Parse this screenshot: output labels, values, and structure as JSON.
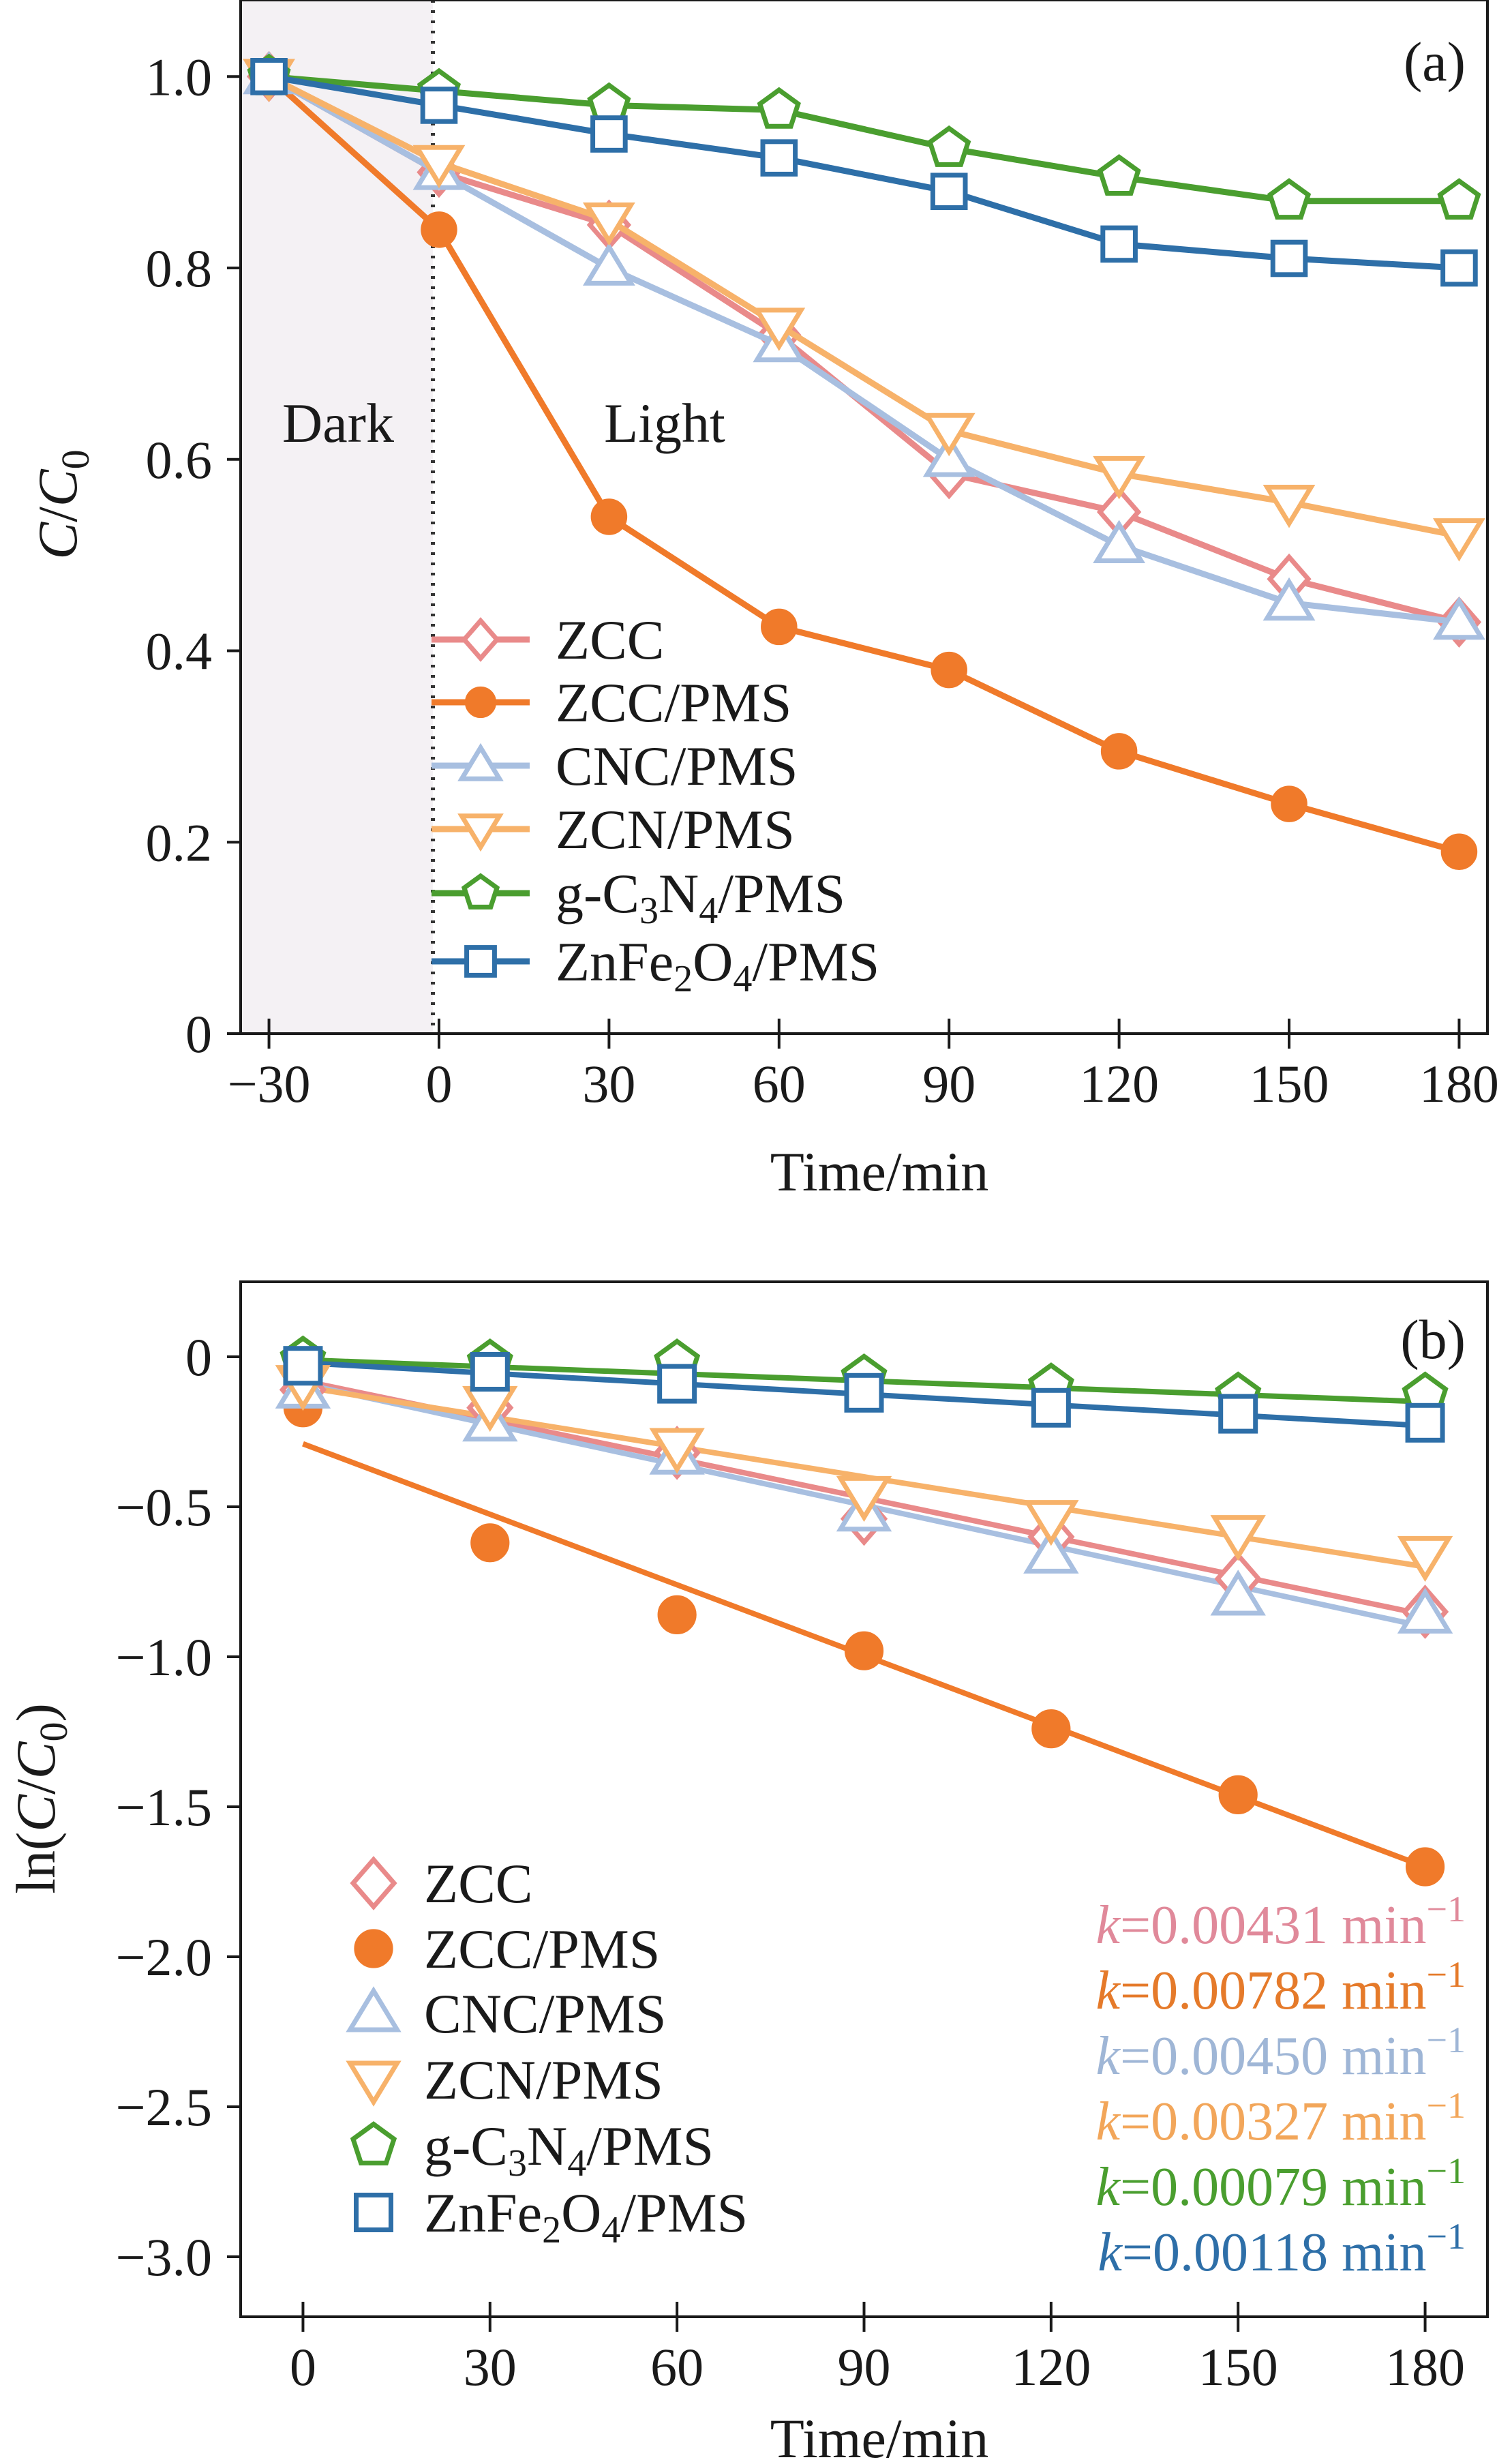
{
  "chart_data": [
    {
      "type": "line",
      "panel_label": "(a)",
      "xlabel": "Time/min",
      "ylabel": "C/C0",
      "ylabel_parts": [
        "C",
        "/",
        "C",
        "0"
      ],
      "xlim": [
        -35,
        185
      ],
      "ylim": [
        0,
        1.08
      ],
      "xticks": [
        -30,
        0,
        30,
        60,
        90,
        120,
        150,
        180
      ],
      "xtick_labels": [
        "−30",
        "0",
        "30",
        "60",
        "90",
        "120",
        "150",
        "180"
      ],
      "yticks": [
        0,
        0.2,
        0.4,
        0.6,
        0.8,
        1.0
      ],
      "ytick_labels": [
        "0",
        "0.2",
        "0.4",
        "0.6",
        "0.8",
        "1.0"
      ],
      "regions": [
        {
          "label": "Dark",
          "from": -30,
          "to": 0,
          "shaded": true
        },
        {
          "label": "Light",
          "from": 0,
          "to": 180,
          "shaded": false
        }
      ],
      "divider_x": 0,
      "x": [
        -30,
        0,
        30,
        60,
        90,
        120,
        150,
        180
      ],
      "series": [
        {
          "name": "ZCC",
          "legend": [
            "ZCC"
          ],
          "marker": "diamond",
          "filled": false,
          "color": "#e98a8a",
          "x": [
            -30,
            0,
            30,
            60,
            90,
            120,
            150,
            180
          ],
          "values": [
            1.0,
            0.9,
            0.845,
            0.73,
            0.585,
            0.545,
            0.475,
            0.43
          ]
        },
        {
          "name": "ZCC/PMS",
          "legend": [
            "ZCC/PMS"
          ],
          "marker": "circle",
          "filled": true,
          "color": "#f07a2a",
          "x": [
            -30,
            0,
            30,
            60,
            90,
            120,
            150,
            180
          ],
          "values": [
            1.0,
            0.84,
            0.54,
            0.425,
            0.38,
            0.295,
            0.24,
            0.19
          ]
        },
        {
          "name": "CNC/PMS",
          "legend": [
            "CNC/PMS"
          ],
          "marker": "triangle-up",
          "filled": false,
          "color": "#a8bfe0",
          "x": [
            -30,
            0,
            30,
            60,
            90,
            120,
            150,
            180
          ],
          "values": [
            1.0,
            0.9,
            0.8,
            0.72,
            0.6,
            0.51,
            0.45,
            0.43
          ]
        },
        {
          "name": "ZCN/PMS",
          "legend": [
            "ZCN/PMS"
          ],
          "marker": "triangle-down",
          "filled": false,
          "color": "#f7b26a",
          "x": [
            -30,
            0,
            30,
            60,
            90,
            120,
            150,
            180
          ],
          "values": [
            1.0,
            0.91,
            0.85,
            0.74,
            0.63,
            0.585,
            0.555,
            0.52
          ]
        },
        {
          "name": "g-C3N4/PMS",
          "legend": [
            "g-C",
            "3",
            "N",
            "4",
            "/PMS"
          ],
          "marker": "pentagon",
          "filled": false,
          "color": "#4a9e2f",
          "x": [
            -30,
            0,
            30,
            60,
            90,
            120,
            150,
            180
          ],
          "values": [
            1.0,
            0.985,
            0.97,
            0.965,
            0.925,
            0.895,
            0.87,
            0.87
          ]
        },
        {
          "name": "ZnFe2O4/PMS",
          "legend": [
            "ZnFe",
            "2",
            "O",
            "4",
            "/PMS"
          ],
          "marker": "square",
          "filled": false,
          "color": "#2e6fa8",
          "x": [
            -30,
            0,
            30,
            60,
            90,
            120,
            150,
            180
          ],
          "values": [
            1.0,
            0.97,
            0.94,
            0.915,
            0.88,
            0.825,
            0.81,
            0.8
          ]
        }
      ]
    },
    {
      "type": "scatter",
      "panel_label": "(b)",
      "xlabel": "Time/min",
      "ylabel": "ln(C/C0)",
      "ylabel_parts": [
        "ln(",
        "C",
        "/",
        "C",
        "0",
        ")"
      ],
      "xlim": [
        -10,
        190
      ],
      "ylim": [
        -3.2,
        0.25
      ],
      "xticks": [
        0,
        30,
        60,
        90,
        120,
        150,
        180
      ],
      "xtick_labels": [
        "0",
        "30",
        "60",
        "90",
        "120",
        "150",
        "180"
      ],
      "yticks": [
        0,
        -0.5,
        -1.0,
        -1.5,
        -2.0,
        -2.5,
        -3.0
      ],
      "ytick_labels": [
        "0",
        "−0.5",
        "−1.0",
        "−1.5",
        "−2.0",
        "−2.5",
        "−3.0"
      ],
      "x": [
        0,
        30,
        60,
        90,
        120,
        150,
        180
      ],
      "series": [
        {
          "name": "ZCC",
          "legend": [
            "ZCC"
          ],
          "marker": "diamond",
          "filled": false,
          "color": "#e98a8a",
          "x": [
            0,
            30,
            60,
            90,
            120,
            150,
            180
          ],
          "values": [
            -0.11,
            -0.17,
            -0.32,
            -0.54,
            -0.6,
            -0.74,
            -0.85
          ],
          "fit": {
            "x0": 0,
            "y0": -0.08,
            "x1": 180,
            "y1": -0.86
          },
          "k_label": [
            "k",
            "=0.00431 min",
            "−1"
          ]
        },
        {
          "name": "ZCC/PMS",
          "legend": [
            "ZCC/PMS"
          ],
          "marker": "circle",
          "filled": true,
          "color": "#f07a2a",
          "x": [
            0,
            30,
            60,
            90,
            120,
            150,
            180
          ],
          "values": [
            -0.17,
            -0.62,
            -0.86,
            -0.98,
            -1.24,
            -1.46,
            -1.7
          ],
          "fit": {
            "x0": 0,
            "y0": -0.29,
            "x1": 180,
            "y1": -1.7
          },
          "k_label": [
            "k",
            "=0.00782 min",
            "−1"
          ]
        },
        {
          "name": "CNC/PMS",
          "legend": [
            "CNC/PMS"
          ],
          "marker": "triangle-up",
          "filled": false,
          "color": "#a8bfe0",
          "x": [
            0,
            30,
            60,
            90,
            120,
            150,
            180
          ],
          "values": [
            -0.11,
            -0.22,
            -0.33,
            -0.52,
            -0.66,
            -0.8,
            -0.86
          ],
          "fit": {
            "x0": 0,
            "y0": -0.09,
            "x1": 180,
            "y1": -0.9
          },
          "k_label": [
            "k",
            "=0.00450 min",
            "−1"
          ]
        },
        {
          "name": "ZCN/PMS",
          "legend": [
            "ZCN/PMS"
          ],
          "marker": "triangle-down",
          "filled": false,
          "color": "#f7b26a",
          "x": [
            0,
            30,
            60,
            90,
            120,
            150,
            180
          ],
          "values": [
            -0.09,
            -0.16,
            -0.3,
            -0.46,
            -0.54,
            -0.59,
            -0.66
          ],
          "fit": {
            "x0": 0,
            "y0": -0.1,
            "x1": 180,
            "y1": -0.7
          },
          "k_label": [
            "k",
            "=0.00327 min",
            "−1"
          ]
        },
        {
          "name": "g-C3N4/PMS",
          "legend": [
            "g-C",
            "3",
            "N",
            "4",
            "/PMS"
          ],
          "marker": "pentagon",
          "filled": false,
          "color": "#4a9e2f",
          "x": [
            0,
            30,
            60,
            90,
            120,
            150,
            180
          ],
          "values": [
            -0.01,
            -0.02,
            -0.02,
            -0.07,
            -0.1,
            -0.13,
            -0.13
          ],
          "fit": {
            "x0": 0,
            "y0": -0.01,
            "x1": 180,
            "y1": -0.15
          },
          "k_label": [
            "k",
            "=0.00079 min",
            "−1"
          ]
        },
        {
          "name": "ZnFe2O4/PMS",
          "legend": [
            "ZnFe",
            "2",
            "O",
            "4",
            "/PMS"
          ],
          "marker": "square",
          "filled": false,
          "color": "#2e6fa8",
          "x": [
            0,
            30,
            60,
            90,
            120,
            150,
            180
          ],
          "values": [
            -0.03,
            -0.05,
            -0.09,
            -0.12,
            -0.17,
            -0.19,
            -0.22
          ],
          "fit": {
            "x0": 0,
            "y0": -0.02,
            "x1": 180,
            "y1": -0.23
          },
          "k_label": [
            "k",
            "=0.00118 min",
            "−1"
          ]
        }
      ]
    }
  ]
}
